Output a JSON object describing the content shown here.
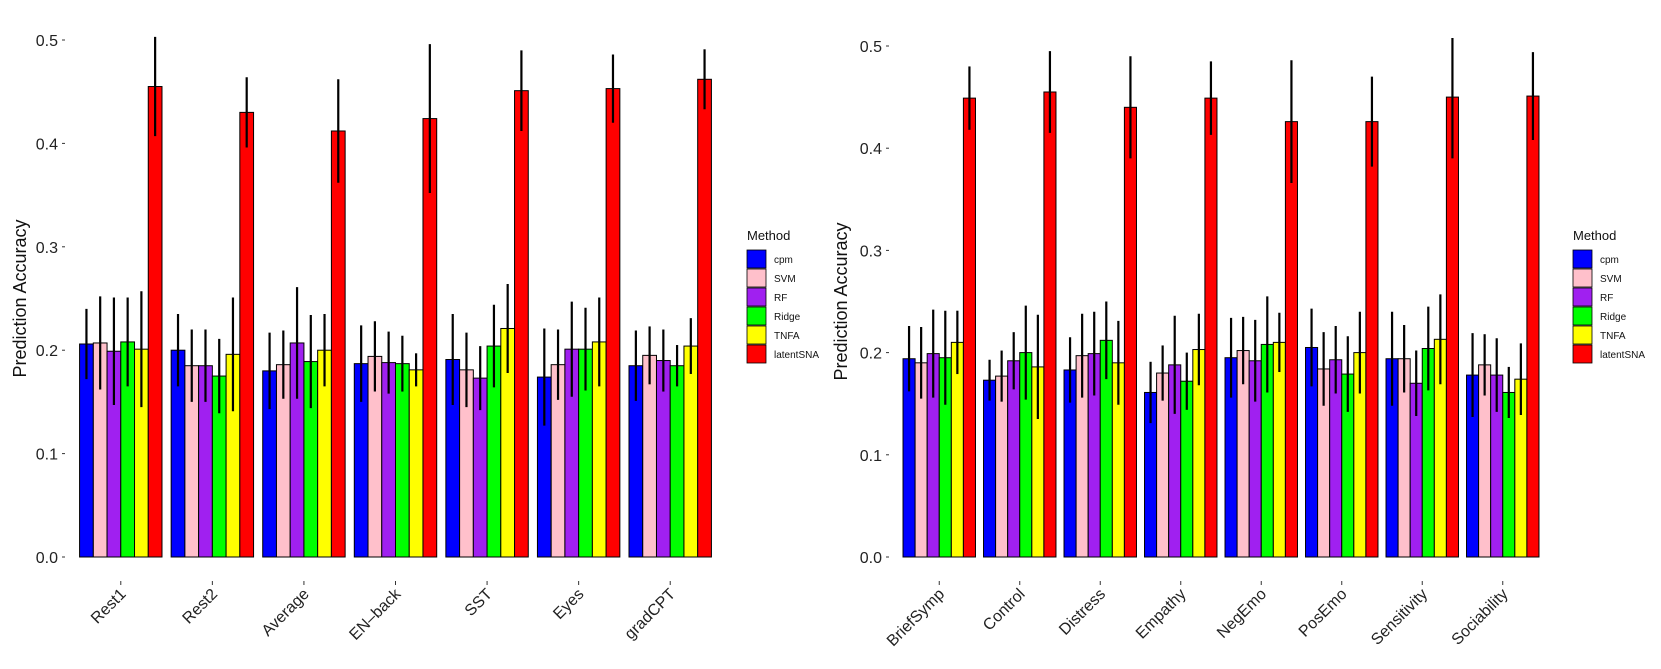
{
  "colors": {
    "cpm": "#0000ff",
    "SVM": "#ffc0cb",
    "RF": "#a020f0",
    "Ridge": "#00ff00",
    "TNFA": "#ffff00",
    "latentSNA": "#ff0000"
  },
  "chart_data": [
    {
      "type": "bar",
      "title": "",
      "xlabel": "",
      "ylabel": "Prediction Accuracy",
      "ylim": [
        0,
        0.5
      ],
      "yticks": [
        "0.0",
        "0.1",
        "0.2",
        "0.3",
        "0.4",
        "0.5"
      ],
      "legend_title": "Method",
      "legend_position": "right",
      "categories": [
        "Rest1",
        "Rest2",
        "Average",
        "EN–back",
        "SST",
        "Eyes",
        "gradCPT"
      ],
      "series": [
        {
          "name": "cpm",
          "values": [
            0.206,
            0.2,
            0.18,
            0.187,
            0.191,
            0.174,
            0.185
          ],
          "err": [
            0.034,
            0.035,
            0.037,
            0.037,
            0.044,
            0.047,
            0.034
          ]
        },
        {
          "name": "SVM",
          "values": [
            0.207,
            0.185,
            0.186,
            0.194,
            0.181,
            0.186,
            0.195
          ],
          "err": [
            0.045,
            0.035,
            0.033,
            0.034,
            0.036,
            0.034,
            0.028
          ]
        },
        {
          "name": "RF",
          "values": [
            0.199,
            0.185,
            0.207,
            0.188,
            0.173,
            0.201,
            0.19
          ],
          "err": [
            0.052,
            0.035,
            0.054,
            0.03,
            0.031,
            0.046,
            0.03
          ]
        },
        {
          "name": "Ridge",
          "values": [
            0.208,
            0.175,
            0.189,
            0.187,
            0.204,
            0.201,
            0.185
          ],
          "err": [
            0.043,
            0.036,
            0.045,
            0.027,
            0.04,
            0.04,
            0.02
          ]
        },
        {
          "name": "TNFA",
          "values": [
            0.201,
            0.196,
            0.2,
            0.181,
            0.221,
            0.208,
            0.204
          ],
          "err": [
            0.056,
            0.055,
            0.035,
            0.016,
            0.043,
            0.043,
            0.027
          ]
        },
        {
          "name": "latentSNA",
          "values": [
            0.455,
            0.43,
            0.412,
            0.424,
            0.451,
            0.453,
            0.462
          ],
          "err": [
            0.048,
            0.034,
            0.05,
            0.072,
            0.039,
            0.033,
            0.029
          ]
        }
      ]
    },
    {
      "type": "bar",
      "title": "",
      "xlabel": "",
      "ylabel": "Prediction Accuracy",
      "ylim": [
        0,
        0.5
      ],
      "yticks": [
        "0.0",
        "0.1",
        "0.2",
        "0.3",
        "0.4",
        "0.5"
      ],
      "legend_title": "Method",
      "legend_position": "right",
      "categories": [
        "BriefSymp",
        "Control",
        "Distress",
        "Empathy",
        "NegEmo",
        "PosEmo",
        "Sensitivity",
        "Sociability"
      ],
      "series": [
        {
          "name": "cpm",
          "values": [
            0.194,
            0.173,
            0.183,
            0.161,
            0.195,
            0.205,
            0.194,
            0.178
          ],
          "err": [
            0.032,
            0.02,
            0.032,
            0.03,
            0.039,
            0.038,
            0.046,
            0.041
          ]
        },
        {
          "name": "SVM",
          "values": [
            0.19,
            0.177,
            0.197,
            0.18,
            0.202,
            0.184,
            0.194,
            0.188
          ],
          "err": [
            0.035,
            0.025,
            0.041,
            0.027,
            0.033,
            0.036,
            0.033,
            0.03
          ]
        },
        {
          "name": "RF",
          "values": [
            0.199,
            0.192,
            0.199,
            0.188,
            0.192,
            0.193,
            0.17,
            0.178
          ],
          "err": [
            0.043,
            0.028,
            0.041,
            0.048,
            0.04,
            0.033,
            0.032,
            0.036
          ]
        },
        {
          "name": "Ridge",
          "values": [
            0.195,
            0.2,
            0.212,
            0.172,
            0.208,
            0.179,
            0.204,
            0.161
          ],
          "err": [
            0.046,
            0.046,
            0.038,
            0.028,
            0.047,
            0.037,
            0.041,
            0.025
          ]
        },
        {
          "name": "TNFA",
          "values": [
            0.21,
            0.186,
            0.19,
            0.203,
            0.21,
            0.2,
            0.213,
            0.174
          ],
          "err": [
            0.031,
            0.051,
            0.041,
            0.035,
            0.029,
            0.04,
            0.044,
            0.035
          ]
        },
        {
          "name": "latentSNA",
          "values": [
            0.449,
            0.455,
            0.44,
            0.449,
            0.426,
            0.426,
            0.45,
            0.451
          ],
          "err": [
            0.031,
            0.04,
            0.05,
            0.036,
            0.06,
            0.044,
            0.06,
            0.043
          ]
        }
      ]
    }
  ]
}
